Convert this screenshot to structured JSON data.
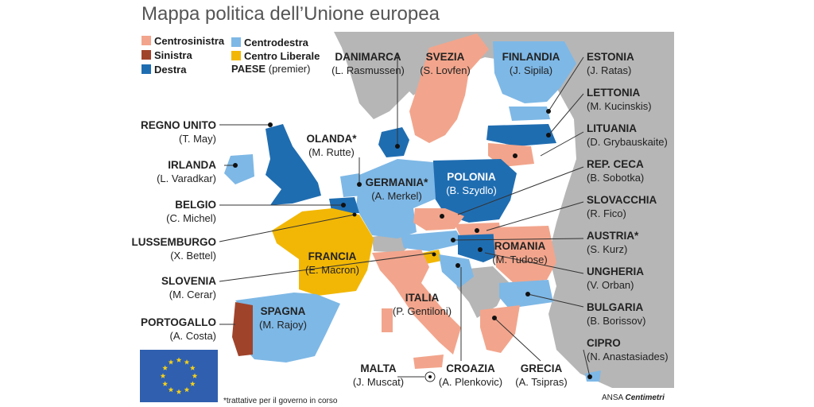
{
  "title": "Mappa politica dell’Unione europea",
  "legend": {
    "items": [
      {
        "label": "Centrosinistra",
        "color": "#f2a58c"
      },
      {
        "label": "Sinistra",
        "color": "#a0432b"
      },
      {
        "label": "Destra",
        "color": "#1f6db1"
      },
      {
        "label": "Centrodestra",
        "color": "#7eb8e6"
      },
      {
        "label": "Centro Liberale",
        "color": "#f2b705"
      }
    ],
    "paese_key": "PAESE",
    "paese_sub": "(premier)"
  },
  "countries": [
    {
      "name": "DANIMARCA",
      "premier": "(L. Rasmussen)"
    },
    {
      "name": "SVEZIA",
      "premier": "(S. Lovfen)"
    },
    {
      "name": "FINLANDIA",
      "premier": "(J. Sipila)"
    },
    {
      "name": "ESTONIA",
      "premier": "(J. Ratas)"
    },
    {
      "name": "LETTONIA",
      "premier": "(M. Kucinskis)"
    },
    {
      "name": "LITUANIA",
      "premier": "(D. Grybauskaite)"
    },
    {
      "name": "REP. CECA",
      "premier": "(B. Sobotka)"
    },
    {
      "name": "SLOVACCHIA",
      "premier": "(R. Fico)"
    },
    {
      "name": "AUSTRIA*",
      "premier": "(S. Kurz)"
    },
    {
      "name": "UNGHERIA",
      "premier": "(V. Orban)"
    },
    {
      "name": "BULGARIA",
      "premier": "(B. Borissov)"
    },
    {
      "name": "CIPRO",
      "premier": "(N. Anastasiades)"
    },
    {
      "name": "REGNO UNITO",
      "premier": "(T. May)"
    },
    {
      "name": "IRLANDA",
      "premier": "(L. Varadkar)"
    },
    {
      "name": "BELGIO",
      "premier": "(C. Michel)"
    },
    {
      "name": "LUSSEMBURGO",
      "premier": "(X. Bettel)"
    },
    {
      "name": "SLOVENIA",
      "premier": "(M. Cerar)"
    },
    {
      "name": "PORTOGALLO",
      "premier": "(A. Costa)"
    },
    {
      "name": "OLANDA*",
      "premier": "(M. Rutte)"
    },
    {
      "name": "GERMANIA*",
      "premier": "(A. Merkel)"
    },
    {
      "name": "POLONIA",
      "premier": "(B. Szydlo)"
    },
    {
      "name": "FRANCIA",
      "premier": "(E. Macron)"
    },
    {
      "name": "ROMANIA",
      "premier": "(M. Tudose)"
    },
    {
      "name": "SPAGNA",
      "premier": "(M. Rajoy)"
    },
    {
      "name": "ITALIA",
      "premier": "(P. Gentiloni)"
    },
    {
      "name": "MALTA",
      "premier": "(J. Muscat)"
    },
    {
      "name": "CROAZIA",
      "premier": "(A. Plenkovic)"
    },
    {
      "name": "GRECIA",
      "premier": "(A. Tsipras)"
    }
  ],
  "footnote": "*trattative per il governo in corso",
  "brand": {
    "part1": "ANSA",
    "part2": "Centimetri"
  },
  "colors": {
    "land": "#b6b6b6",
    "sea": "#ffffff",
    "leader": "#333333",
    "eu_flag": "#2f5fae",
    "eu_star": "#f7d117"
  }
}
